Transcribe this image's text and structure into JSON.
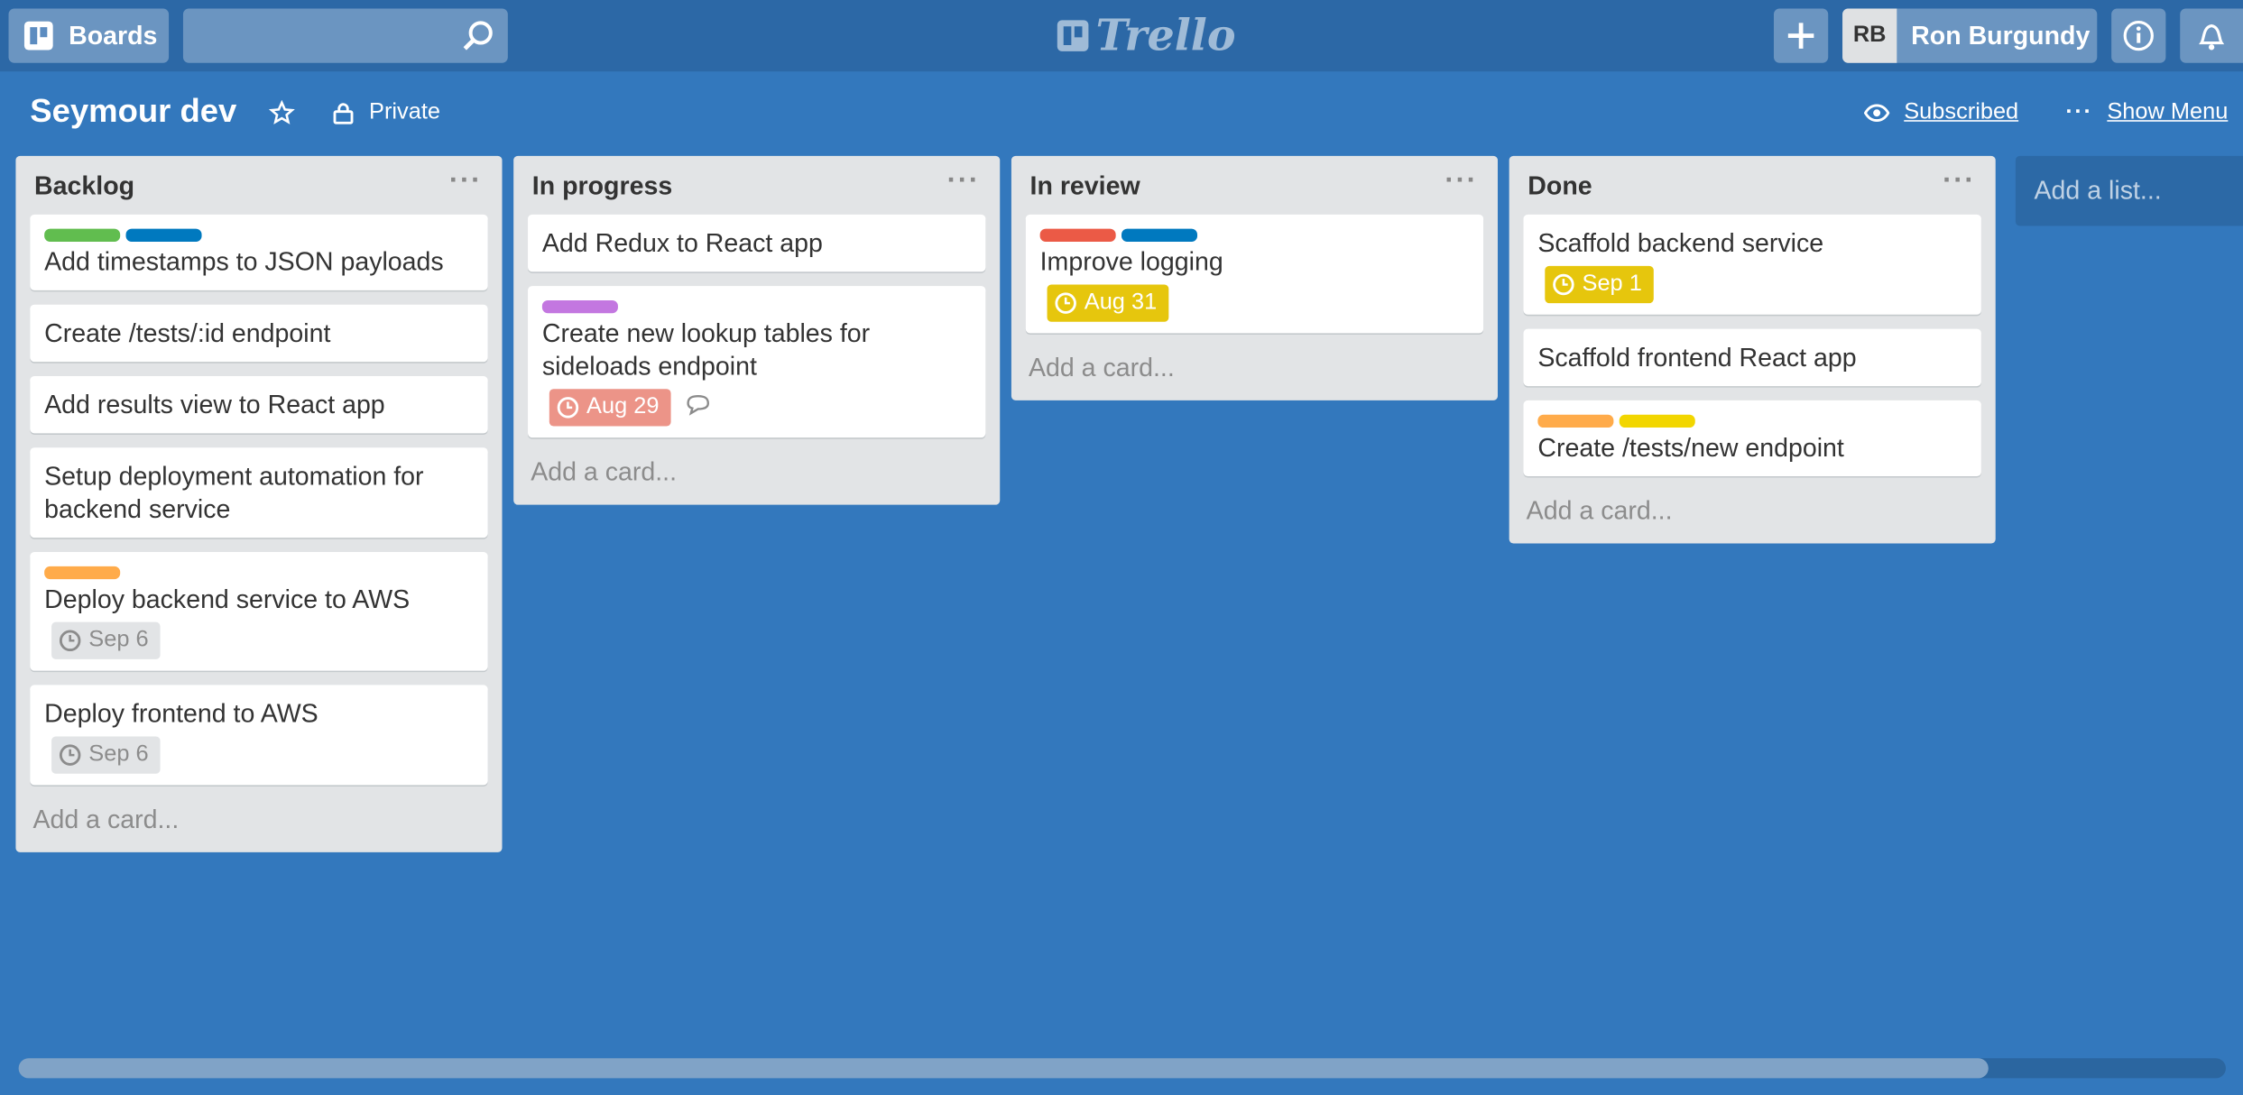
{
  "header": {
    "boards": "Boards",
    "logo": "Trello",
    "user_initials": "RB",
    "user_name": "Ron Burgundy"
  },
  "board": {
    "title": "Seymour dev",
    "visibility": "Private",
    "subscribed": "Subscribed",
    "show_menu": "Show Menu"
  },
  "lists": [
    {
      "title": "Backlog",
      "add_card": "Add a card...",
      "cards": [
        {
          "labels": [
            "#61bd4f",
            "#0079bf"
          ],
          "title": "Add timestamps to JSON payloads"
        },
        {
          "labels": [],
          "title": "Create /tests/:id endpoint"
        },
        {
          "labels": [],
          "title": "Add results view to React app"
        },
        {
          "labels": [],
          "title": "Setup deployment automation for backend service"
        },
        {
          "labels": [
            "#ffab4a"
          ],
          "title": "Deploy backend service to AWS",
          "due": "Sep 6",
          "due_color": "#e2e4e6"
        },
        {
          "labels": [],
          "title": "Deploy frontend to AWS",
          "due": "Sep 6",
          "due_color": "#e2e4e6"
        }
      ]
    },
    {
      "title": "In progress",
      "add_card": "Add a card...",
      "cards": [
        {
          "labels": [],
          "title": "Add Redux to React app"
        },
        {
          "labels": [
            "#c377e0"
          ],
          "title": "Create new lookup tables for sideloads endpoint",
          "due": "Aug 29",
          "due_color": "#ec9488",
          "comment": true
        }
      ]
    },
    {
      "title": "In review",
      "add_card": "Add a card...",
      "cards": [
        {
          "labels": [
            "#eb5a46",
            "#0079bf"
          ],
          "title": "Improve logging",
          "due": "Aug 31",
          "due_color": "#e6c60d"
        }
      ]
    },
    {
      "title": "Done",
      "add_card": "Add a card...",
      "cards": [
        {
          "labels": [],
          "title": "Scaffold backend service",
          "due": "Sep 1",
          "due_color": "#e6c60d"
        },
        {
          "labels": [],
          "title": "Scaffold frontend React app"
        },
        {
          "labels": [
            "#ffab4a",
            "#f2d600"
          ],
          "title": "Create /tests/new endpoint"
        }
      ]
    }
  ],
  "add_list": "Add a list..."
}
